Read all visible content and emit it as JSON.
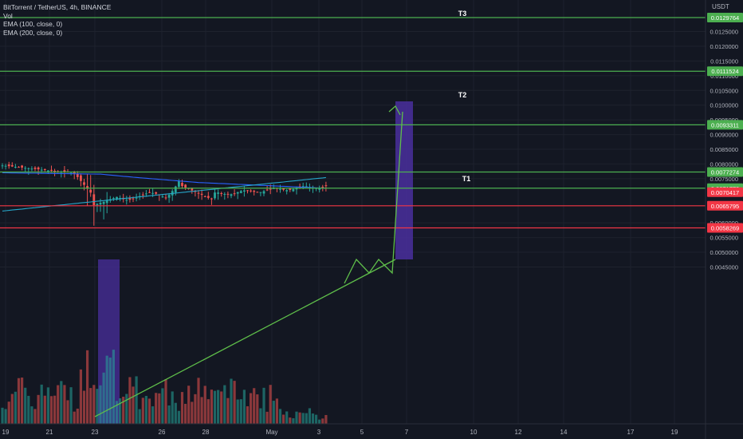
{
  "legend": {
    "symbol_line": "BitTorrent / TetherUS, 4h, BINANCE",
    "vol": "Vol",
    "ema100": "EMA (100, close, 0)",
    "ema200": "EMA (200, close, 0)"
  },
  "price_axis": {
    "unit": "USDT",
    "ticks": [
      "0.0125000",
      "0.0120000",
      "0.0115000",
      "0.0110000",
      "0.0105000",
      "0.0100000",
      "0.0095000",
      "0.0090000",
      "0.0085000",
      "0.0080000",
      "0.0075000",
      "0.0060000",
      "0.0055000",
      "0.0050000",
      "0.0045000"
    ],
    "tick_values": [
      0.0125,
      0.012,
      0.0115,
      0.011,
      0.0105,
      0.01,
      0.0095,
      0.009,
      0.0085,
      0.008,
      0.0075,
      0.006,
      0.0055,
      0.005,
      0.0045
    ]
  },
  "time_axis": {
    "labels": [
      "19",
      "21",
      "23",
      "26",
      "28",
      "May",
      "3",
      "5",
      "7",
      "10",
      "12",
      "14",
      "17",
      "19"
    ]
  },
  "levels": [
    {
      "label": "0.0129764",
      "value": 0.0129764,
      "color": "#4caf50",
      "kind": "target",
      "target": "T3"
    },
    {
      "label": "0.0111524",
      "value": 0.0111524,
      "color": "#4caf50",
      "kind": "target",
      "target": "T2"
    },
    {
      "label": "0.0093311",
      "value": 0.0093311,
      "color": "#4caf50",
      "kind": "target",
      "target": "T1"
    },
    {
      "label": "0.0077274",
      "value": 0.0077274,
      "color": "#4caf50",
      "kind": "support"
    },
    {
      "label": "0.0071773",
      "value": 0.0071773,
      "color": "#4caf50",
      "kind": "support"
    },
    {
      "label": "0.0070417",
      "value": 0.0070417,
      "color": "#f23645",
      "kind": "current"
    },
    {
      "label": "0.0065795",
      "value": 0.0065795,
      "color": "#f23645",
      "kind": "stop"
    },
    {
      "label": "0.0058269",
      "value": 0.0058269,
      "color": "#f23645",
      "kind": "stop"
    }
  ],
  "target_labels": [
    "T3",
    "T2",
    "T1"
  ],
  "colors": {
    "background": "#131722",
    "grid": "#1e222d",
    "up": "#26a69a",
    "down": "#ef5350",
    "ema100": "#2962ff",
    "ema200": "#26a6c9",
    "projection": "#5fbf4a",
    "zone": "#4a2f9e",
    "axis_text": "#b2b5be"
  }
}
